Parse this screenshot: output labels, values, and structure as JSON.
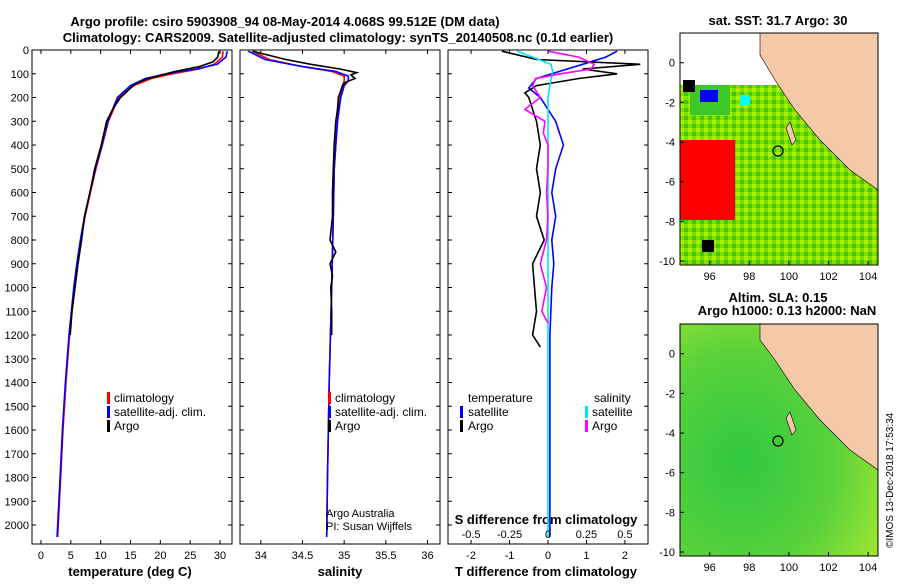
{
  "header": {
    "title_line1": "Argo profile: csiro 5903908_94 08-May-2014 4.068S 99.512E (DM data)",
    "title_line2": "Climatology: CARS2009. Satellite-adjusted climatology: synTS_20140508.nc (0.1d earlier)"
  },
  "colors": {
    "climatology": "#ff0000",
    "satellite": "#0000ff",
    "argo": "#000000",
    "sat_salinity": "#00e5ff",
    "argo_salinity": "#ff00ff"
  },
  "chart_data": [
    {
      "type": "line",
      "name": "temperature",
      "xlabel": "temperature (deg C)",
      "xlim": [
        -1.5,
        32
      ],
      "xticks": [
        0,
        5,
        10,
        15,
        20,
        25,
        30
      ],
      "ylim": [
        0,
        2080
      ],
      "yticks": [
        0,
        100,
        200,
        300,
        400,
        500,
        600,
        700,
        800,
        900,
        1000,
        1100,
        1200,
        1300,
        1400,
        1500,
        1600,
        1700,
        1800,
        1900,
        2000
      ],
      "legend": [
        "climatology",
        "satellite-adj. clim.",
        "Argo"
      ],
      "series": [
        {
          "name": "climatology",
          "depth": [
            5,
            30,
            60,
            80,
            100,
            120,
            150,
            200,
            300,
            400,
            500,
            600,
            700,
            800,
            900,
            1000,
            1200,
            1400,
            1600,
            1800,
            2000,
            2050
          ],
          "values": [
            30.5,
            30.4,
            29.0,
            26.5,
            22.0,
            18.5,
            15.5,
            13.0,
            11.3,
            10.3,
            9.2,
            8.3,
            7.4,
            6.7,
            6.1,
            5.6,
            4.8,
            4.2,
            3.7,
            3.3,
            2.9,
            2.8
          ]
        },
        {
          "name": "satellite-adj. clim.",
          "depth": [
            5,
            30,
            60,
            80,
            100,
            120,
            150,
            200,
            300,
            400,
            500,
            600,
            700,
            800,
            900,
            1000,
            1200,
            1400,
            1600,
            1800,
            2000,
            2050
          ],
          "values": [
            31.2,
            31.0,
            29.5,
            26.0,
            21.0,
            17.5,
            15.0,
            12.8,
            11.2,
            10.2,
            9.1,
            8.2,
            7.3,
            6.6,
            6.0,
            5.5,
            4.7,
            4.1,
            3.6,
            3.2,
            2.8,
            2.7
          ]
        },
        {
          "name": "Argo",
          "depth": [
            5,
            30,
            50,
            70,
            90,
            100,
            120,
            140,
            160,
            180,
            200,
            250,
            300,
            400,
            500,
            600,
            700,
            800,
            900,
            1000,
            1100,
            1200
          ],
          "values": [
            29.8,
            29.6,
            28.8,
            26.5,
            22.5,
            21.0,
            18.0,
            16.0,
            15.0,
            14.2,
            13.3,
            12.0,
            11.0,
            10.1,
            9.0,
            8.2,
            7.3,
            6.8,
            6.2,
            5.7,
            5.2,
            4.9
          ]
        }
      ]
    },
    {
      "type": "line",
      "name": "salinity",
      "xlabel": "salinity",
      "xlim": [
        33.75,
        36.15
      ],
      "xticks": [
        34,
        34.5,
        35,
        35.5,
        36
      ],
      "ylim": [
        0,
        2080
      ],
      "legend": [
        "climatology",
        "satellite-adj. clim.",
        "Argo"
      ],
      "annotation": [
        "Argo Australia",
        "PI: Susan Wijffels"
      ],
      "series": [
        {
          "name": "climatology",
          "depth": [
            5,
            40,
            70,
            90,
            110,
            130,
            150,
            200,
            300,
            400,
            500,
            700,
            1000,
            1400,
            1800,
            2050
          ],
          "values": [
            33.9,
            34.1,
            34.5,
            34.85,
            35.0,
            35.0,
            34.98,
            34.95,
            34.92,
            34.9,
            34.88,
            34.87,
            34.85,
            34.82,
            34.8,
            34.79
          ]
        },
        {
          "name": "satellite-adj. clim.",
          "depth": [
            5,
            40,
            70,
            90,
            110,
            130,
            150,
            200,
            300,
            400,
            500,
            700,
            1000,
            1400,
            1800,
            2050
          ],
          "values": [
            33.85,
            34.05,
            34.5,
            34.9,
            35.05,
            35.05,
            35.0,
            34.96,
            34.92,
            34.9,
            34.88,
            34.87,
            34.85,
            34.82,
            34.8,
            34.79
          ]
        },
        {
          "name": "Argo",
          "depth": [
            5,
            40,
            60,
            80,
            95,
            105,
            120,
            135,
            150,
            200,
            250,
            300,
            400,
            500,
            600,
            700,
            800,
            850,
            900,
            950,
            1000,
            1100,
            1200
          ],
          "values": [
            33.9,
            34.3,
            34.6,
            34.95,
            35.15,
            35.08,
            35.13,
            35.02,
            34.98,
            34.93,
            34.92,
            34.9,
            34.88,
            34.87,
            34.86,
            34.86,
            34.83,
            34.9,
            34.83,
            34.86,
            34.84,
            34.85,
            34.85
          ]
        }
      ]
    },
    {
      "type": "line",
      "name": "differences",
      "xlabel": "T difference from climatology",
      "xlabel2": "S difference from climatology",
      "xlim": [
        -2.6,
        2.6
      ],
      "xticks": [
        -2,
        -1,
        0,
        1,
        2
      ],
      "xticks2": [
        "-0.5",
        "-0.25",
        "0",
        "0.25",
        "0.5"
      ],
      "ylim": [
        0,
        2080
      ],
      "legend_temperature": [
        "temperature",
        "satellite",
        "Argo"
      ],
      "legend_salinity": [
        "salinity",
        "satellite",
        "Argo"
      ],
      "series": [
        {
          "name": "T satellite",
          "depth": [
            5,
            30,
            60,
            90,
            120,
            160,
            200,
            300,
            400,
            500,
            600,
            700,
            800,
            900,
            1000,
            1200,
            1400,
            1600,
            1800,
            2050
          ],
          "values": [
            1.8,
            1.5,
            0.9,
            0.3,
            -0.3,
            -0.5,
            -0.2,
            0.2,
            0.4,
            0.2,
            0.1,
            0.2,
            0.1,
            0.15,
            0.1,
            0.05,
            0.05,
            0.05,
            0.05,
            0.05
          ]
        },
        {
          "name": "T Argo",
          "depth": [
            5,
            20,
            40,
            60,
            80,
            100,
            120,
            150,
            180,
            200,
            250,
            300,
            400,
            500,
            600,
            700,
            800,
            900,
            1000,
            1100,
            1200,
            1250
          ],
          "values": [
            -1.2,
            -0.8,
            -0.3,
            2.4,
            0.9,
            1.8,
            0.8,
            -0.3,
            -0.6,
            -0.5,
            -0.4,
            -0.3,
            -0.2,
            -0.3,
            -0.2,
            -0.3,
            -0.1,
            -0.4,
            -0.35,
            -0.3,
            -0.4,
            -0.2
          ]
        },
        {
          "name": "S satellite",
          "depth": [
            5,
            30,
            60,
            90,
            120,
            160,
            200,
            300,
            400,
            500,
            700,
            900,
            1100,
            1400,
            1700,
            2050
          ],
          "values": [
            -0.2,
            -0.1,
            0.02,
            0.03,
            0.02,
            0.01,
            0.0,
            0.0,
            0.0,
            0.0,
            0.0,
            0.0,
            0.0,
            0.0,
            0.0,
            0.0
          ]
        },
        {
          "name": "S Argo",
          "depth": [
            5,
            30,
            60,
            80,
            100,
            120,
            150,
            200,
            250,
            300,
            350,
            400,
            500,
            600,
            700,
            800,
            900,
            1000,
            1100,
            1150
          ],
          "values": [
            0.0,
            0.2,
            0.3,
            0.28,
            0.08,
            -0.08,
            -0.1,
            -0.05,
            -0.15,
            -0.02,
            -0.03,
            0.0,
            0.0,
            -0.01,
            0.0,
            -0.01,
            -0.05,
            -0.01,
            -0.04,
            0.0
          ]
        }
      ]
    },
    {
      "type": "heatmap",
      "name": "sst map",
      "title": "sat. SST: 31.7  Argo: 30",
      "xticks": [
        96,
        98,
        100,
        102,
        104
      ],
      "yticks": [
        0,
        -2,
        -4,
        -6,
        -8,
        -10
      ],
      "xlim": [
        94.5,
        104.5
      ],
      "ylim": [
        -10.2,
        1.5
      ],
      "float_position": [
        99.5,
        -4.07
      ]
    },
    {
      "type": "heatmap",
      "name": "sla map",
      "title_line1": "Altim. SLA: 0.15",
      "title_line2": "Argo h1000: 0.13 h2000: NaN",
      "xticks": [
        96,
        98,
        100,
        102,
        104
      ],
      "yticks": [
        0,
        -2,
        -4,
        -6,
        -8,
        -10
      ],
      "xlim": [
        94.5,
        104.5
      ],
      "ylim": [
        -10.2,
        1.5
      ],
      "float_position": [
        99.5,
        -4.07
      ]
    }
  ],
  "depth_ticks": [
    "0",
    "100",
    "200",
    "300",
    "400",
    "500",
    "600",
    "700",
    "800",
    "900",
    "1000",
    "1100",
    "1200",
    "1300",
    "1400",
    "1500",
    "1600",
    "1700",
    "1800",
    "1900",
    "2000"
  ],
  "watermark": "©IMOS 13-Dec-2018 17:53:34"
}
